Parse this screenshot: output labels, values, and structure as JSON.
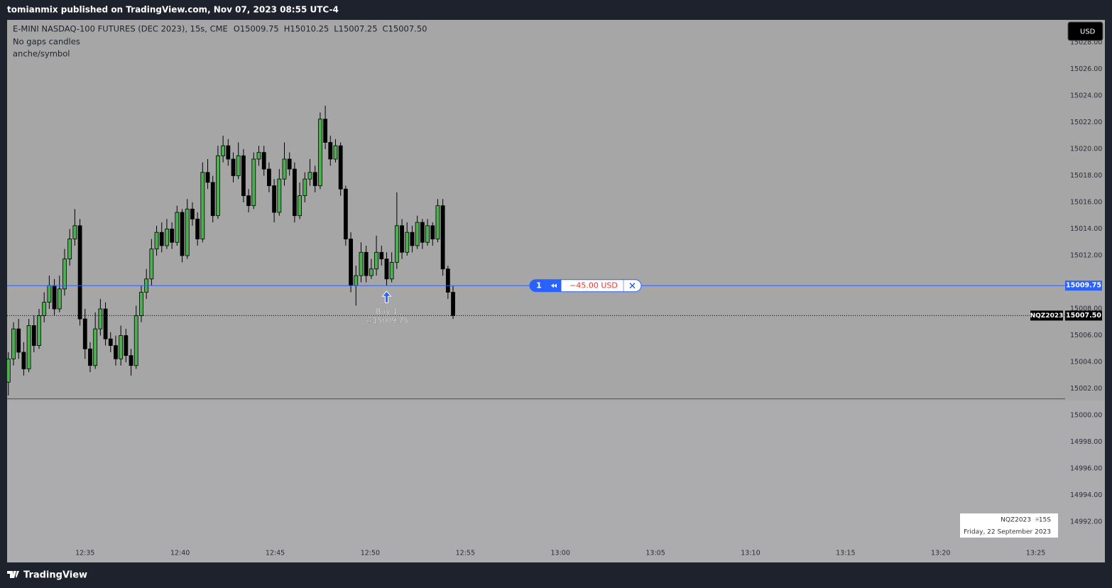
{
  "header": {
    "publisher": "tomianmix published on TradingView.com, Nov 07, 2023 08:55 UTC-4"
  },
  "footer": {
    "brand": "TradingView"
  },
  "chart_data": {
    "type": "candlestick",
    "title": "E-MINI NASDAQ-100 FUTURES (DEC 2023), 15s, CME",
    "ohlc_legend": [
      "O15009.75",
      "H15010.25",
      "L15007.25",
      "C15007.50"
    ],
    "indicators": [
      "No gaps candles",
      "anche/symbol"
    ],
    "currency": "USD",
    "symbol": "NQZ2023",
    "grid": false,
    "xlim": [
      -0.25,
      206.75
    ],
    "xticks": [
      {
        "value": 15,
        "label": "12:35"
      },
      {
        "value": 33.6,
        "label": "12:40"
      },
      {
        "value": 52.2,
        "label": "12:45"
      },
      {
        "value": 70.8,
        "label": "12:50"
      },
      {
        "value": 89.4,
        "label": "12:55"
      },
      {
        "value": 108,
        "label": "13:00"
      },
      {
        "value": 126.6,
        "label": "13:05"
      },
      {
        "value": 145.2,
        "label": "13:10"
      },
      {
        "value": 163.8,
        "label": "13:15"
      },
      {
        "value": 182.4,
        "label": "13:20"
      },
      {
        "value": 201,
        "label": "13:25"
      }
    ],
    "ylim": [
      14990.3,
      15029.7
    ],
    "yticks": [
      {
        "value": 14992,
        "label": "14992.00"
      },
      {
        "value": 14994,
        "label": "14994.00"
      },
      {
        "value": 14996,
        "label": "14996.00"
      },
      {
        "value": 14998,
        "label": "14998.00"
      },
      {
        "value": 15000,
        "label": "15000.00"
      },
      {
        "value": 15002,
        "label": "15002.00"
      },
      {
        "value": 15004,
        "label": "15004.00"
      },
      {
        "value": 15006,
        "label": "15006.00"
      },
      {
        "value": 15008,
        "label": "15008.00"
      },
      {
        "value": 15012,
        "label": "15012.00"
      },
      {
        "value": 15014,
        "label": "15014.00"
      },
      {
        "value": 15016,
        "label": "15016.00"
      },
      {
        "value": 15018,
        "label": "15018.00"
      },
      {
        "value": 15020,
        "label": "15020.00"
      },
      {
        "value": 15022,
        "label": "15022.00"
      },
      {
        "value": 15024,
        "label": "15024.00"
      },
      {
        "value": 15026,
        "label": "15026.00"
      },
      {
        "value": 15028,
        "label": "15028.00"
      }
    ],
    "series": [
      {
        "up_color": "#4caf50",
        "down_color": "#000000",
        "open": [
          15002.5,
          15004.25,
          15006.5,
          15004.75,
          15003.5,
          15006.75,
          15005.25,
          15007.5,
          15008.5,
          15009.75,
          15008,
          15009.5,
          15011.75,
          15013.25,
          15014.25,
          15007.25,
          15005,
          15003.75,
          15006.5,
          15008,
          15005.75,
          15005.25,
          15004.25,
          15006,
          15004.5,
          15003.75,
          15007.5,
          15009.25,
          15010.25,
          15012.5,
          15013.75,
          15012.75,
          15014,
          15013,
          15015.25,
          15012,
          15015.5,
          15014.75,
          15013.25,
          15018.25,
          15017.5,
          15015,
          15019.5,
          15020.25,
          15019.25,
          15018,
          15019.5,
          15016.5,
          15015.75,
          15019.25,
          15019.75,
          15018.5,
          15017.25,
          15015.25,
          15017.75,
          15019.25,
          15018.5,
          15015,
          15016.5,
          15017.75,
          15018.25,
          15017.25,
          15022.25,
          15020.5,
          15019.25,
          15020.25,
          15017,
          15013.25,
          15009.75,
          15010.5,
          15012.25,
          15010.5,
          15011,
          15012.25,
          15011.75,
          15010.25,
          15011.5,
          15014.25,
          15012.25,
          15013.75,
          15012.75,
          15014.5,
          15013,
          15014.25,
          15013.25,
          15015.75,
          15011,
          15009.25
        ],
        "high": [
          15004.75,
          15007,
          15007.25,
          15005.5,
          15007.25,
          15007.5,
          15008,
          15009.25,
          15010.5,
          15010.25,
          15010.5,
          15012.5,
          15014,
          15015.5,
          15014.75,
          15008,
          15005.5,
          15007.75,
          15008.75,
          15008.5,
          15006.25,
          15006,
          15006.75,
          15006.5,
          15005,
          15008.25,
          15009.75,
          15011,
          15013.25,
          15014.25,
          15014.5,
          15014.75,
          15014.5,
          15015.75,
          15015.5,
          15016.25,
          15016,
          15015.25,
          15019,
          15019.25,
          15018,
          15020.25,
          15021,
          15020.75,
          15019.75,
          15020.5,
          15020,
          15017,
          15019.75,
          15020.25,
          15020.25,
          15019,
          15017.75,
          15018.5,
          15020.5,
          15019.75,
          15019,
          15017.5,
          15018.25,
          15019.25,
          15018.75,
          15022.75,
          15023.25,
          15021,
          15020.75,
          15020.5,
          15017.25,
          15013.75,
          15011.25,
          15013,
          15012.75,
          15011.75,
          15013.5,
          15012.75,
          15012.25,
          15012.25,
          15016.75,
          15014.75,
          15014.5,
          15014.25,
          15015,
          15014.75,
          15014.75,
          15014.5,
          15016.25,
          15016.25,
          15011.25,
          15009.75
        ],
        "low": [
          15001.5,
          15003.75,
          15004.25,
          15003,
          15003.25,
          15004.75,
          15005,
          15007,
          15008,
          15007.5,
          15007.75,
          15009,
          15011.25,
          15012.75,
          15006.75,
          15004.25,
          15003.25,
          15003.5,
          15006,
          15005.25,
          15004.75,
          15003.75,
          15003.75,
          15004,
          15003,
          15003.5,
          15007,
          15008.75,
          15009.75,
          15012,
          15012.25,
          15012.5,
          15012.5,
          15012.75,
          15011.5,
          15011.75,
          15014.25,
          15012.75,
          15013,
          15017,
          15014.5,
          15014.75,
          15019,
          15018.75,
          15017.5,
          15017.75,
          15016,
          15015.25,
          15015.5,
          15018.75,
          15018,
          15016.75,
          15014.5,
          15015,
          15017.25,
          15018,
          15014.5,
          15014.75,
          15016,
          15017.25,
          15016.75,
          15017,
          15020,
          15018.75,
          15019,
          15016.5,
          15012.75,
          15009.25,
          15008.25,
          15010,
          15010,
          15010.25,
          15010.5,
          15011.25,
          15009.75,
          15010,
          15011,
          15011.75,
          15012,
          15012.25,
          15012.5,
          15012.5,
          15012.75,
          15012.75,
          15013,
          15010.5,
          15008.75,
          15007.25
        ],
        "close": [
          15004.25,
          15006.5,
          15004.75,
          15003.5,
          15006.75,
          15005.25,
          15007.5,
          15008.5,
          15009.75,
          15008,
          15009.5,
          15011.75,
          15013.25,
          15014.25,
          15007.25,
          15005,
          15003.75,
          15006.5,
          15008,
          15005.75,
          15005.25,
          15004.25,
          15006,
          15004.5,
          15003.75,
          15007.5,
          15009.25,
          15010.25,
          15012.5,
          15013.75,
          15012.75,
          15014,
          15013,
          15015.25,
          15012,
          15015.5,
          15014.75,
          15013.25,
          15018.25,
          15017.5,
          15015,
          15019.5,
          15020.25,
          15019.25,
          15018,
          15019.5,
          15016.5,
          15015.75,
          15019.25,
          15019.75,
          15018.5,
          15017.25,
          15015.25,
          15017.75,
          15019.25,
          15018.5,
          15015,
          15016.5,
          15017.75,
          15018.25,
          15017.25,
          15022.25,
          15020.5,
          15019.25,
          15020.25,
          15017,
          15013.25,
          15009.75,
          15010.5,
          15012.25,
          15010.5,
          15011,
          15012.25,
          15011.75,
          15010.25,
          15011.5,
          15014.25,
          15012.25,
          15013.75,
          15012.75,
          15014.5,
          15013,
          15014.25,
          15013.25,
          15015.75,
          15011,
          15009.25,
          15007.5
        ]
      }
    ],
    "last_price": {
      "value": 15007.5,
      "label": "15007.50",
      "color": "#000000"
    },
    "position": {
      "price": {
        "value": 15009.75,
        "label": "15009.75"
      },
      "quantity": 1,
      "pnl": "−45.00 USD",
      "color": "#2962ff"
    },
    "order": {
      "x": 74,
      "text": "Buy 1",
      "price_label": "@15009.75"
    },
    "horizontal_line": 15001.25,
    "watermark": {
      "symbol": "NQZ2023",
      "interval": "15S",
      "date": "Friday, 22 September 2023"
    }
  }
}
